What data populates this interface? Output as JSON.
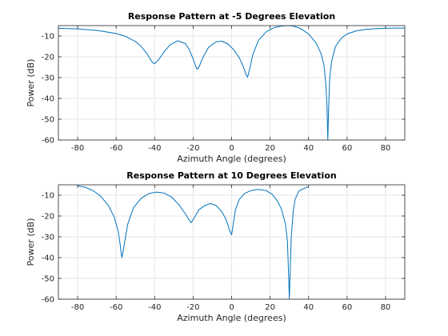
{
  "chart_data": [
    {
      "type": "line",
      "title": "Response Pattern at -5 Degrees Elevation",
      "xlabel": "Azimuth Angle (degrees)",
      "ylabel": "Power (dB)",
      "xlim": [
        -90,
        90
      ],
      "ylim": [
        -60,
        -5
      ],
      "xticks": [
        -80,
        -60,
        -40,
        -20,
        0,
        20,
        40,
        60,
        80
      ],
      "yticks": [
        -10,
        -20,
        -30,
        -40,
        -50,
        -60
      ],
      "grid": true,
      "series": [
        {
          "color": "#0072bd",
          "x": [
            -90,
            -80,
            -70,
            -60,
            -55,
            -50,
            -47,
            -44,
            -42,
            -41,
            -40,
            -38,
            -35,
            -32,
            -28,
            -24,
            -22,
            -20,
            -18.5,
            -18,
            -17,
            -15,
            -12,
            -8,
            -5,
            -2,
            1,
            4,
            6,
            7.5,
            8.3,
            9.5,
            11,
            14,
            18,
            22,
            26,
            29,
            32,
            36,
            40,
            44,
            46.5,
            48,
            49,
            49.6,
            50,
            50.4,
            51,
            52,
            54,
            57,
            60,
            65,
            70,
            75,
            80,
            85,
            90
          ],
          "y": [
            -6.3,
            -6.6,
            -7.3,
            -8.8,
            -10.2,
            -12.6,
            -15,
            -18.5,
            -21.5,
            -22.8,
            -23.3,
            -21.5,
            -17.5,
            -14.3,
            -12.3,
            -13.6,
            -16.5,
            -21,
            -24.8,
            -26,
            -25,
            -20.5,
            -15.5,
            -12.8,
            -12.5,
            -13.8,
            -16.5,
            -20.5,
            -24.5,
            -28.5,
            -29.8,
            -25.5,
            -19,
            -12,
            -8,
            -6,
            -5.2,
            -5,
            -5.2,
            -6.5,
            -9,
            -13.5,
            -18.5,
            -24,
            -33,
            -45,
            -60,
            -45,
            -30,
            -22,
            -15,
            -11,
            -9,
            -7.5,
            -6.8,
            -6.5,
            -6.3,
            -6.2,
            -6.2
          ]
        }
      ]
    },
    {
      "type": "line",
      "title": "Response Pattern at 10 Degrees Elevation",
      "xlabel": "Azimuth Angle (degrees)",
      "ylabel": "Power (dB)",
      "xlim": [
        -90,
        90
      ],
      "ylim": [
        -60,
        -5
      ],
      "xticks": [
        -80,
        -60,
        -40,
        -20,
        0,
        20,
        40,
        60,
        80
      ],
      "yticks": [
        -10,
        -20,
        -30,
        -40,
        -50,
        -60
      ],
      "grid": true,
      "series": [
        {
          "color": "#0072bd",
          "x": [
            -80,
            -76,
            -72,
            -68,
            -64,
            -61,
            -59,
            -58,
            -57.5,
            -57,
            -56,
            -54,
            -51,
            -47,
            -43,
            -39,
            -35,
            -31,
            -27,
            -24,
            -22,
            -21,
            -19.5,
            -17,
            -14,
            -11,
            -8,
            -5,
            -3,
            -2,
            -1,
            0,
            1,
            2,
            4,
            7,
            10,
            14,
            18,
            21,
            24,
            26,
            28,
            29,
            29.5,
            30,
            30.5,
            31,
            32,
            33,
            35,
            37,
            39,
            40
          ],
          "y": [
            -5.5,
            -6.2,
            -7.8,
            -10.5,
            -15,
            -20.5,
            -27,
            -33,
            -37,
            -40,
            -35,
            -24,
            -16,
            -11.5,
            -9.2,
            -8.5,
            -9,
            -11,
            -15,
            -19,
            -22,
            -23.2,
            -21,
            -17,
            -15,
            -14,
            -15,
            -18,
            -21.5,
            -24,
            -27,
            -29,
            -23,
            -17,
            -12,
            -9,
            -7.8,
            -7.2,
            -7.8,
            -9.5,
            -13,
            -17,
            -24,
            -32,
            -45,
            -60,
            -45,
            -30,
            -18,
            -12,
            -8,
            -7,
            -6.2,
            -6
          ]
        }
      ]
    }
  ]
}
